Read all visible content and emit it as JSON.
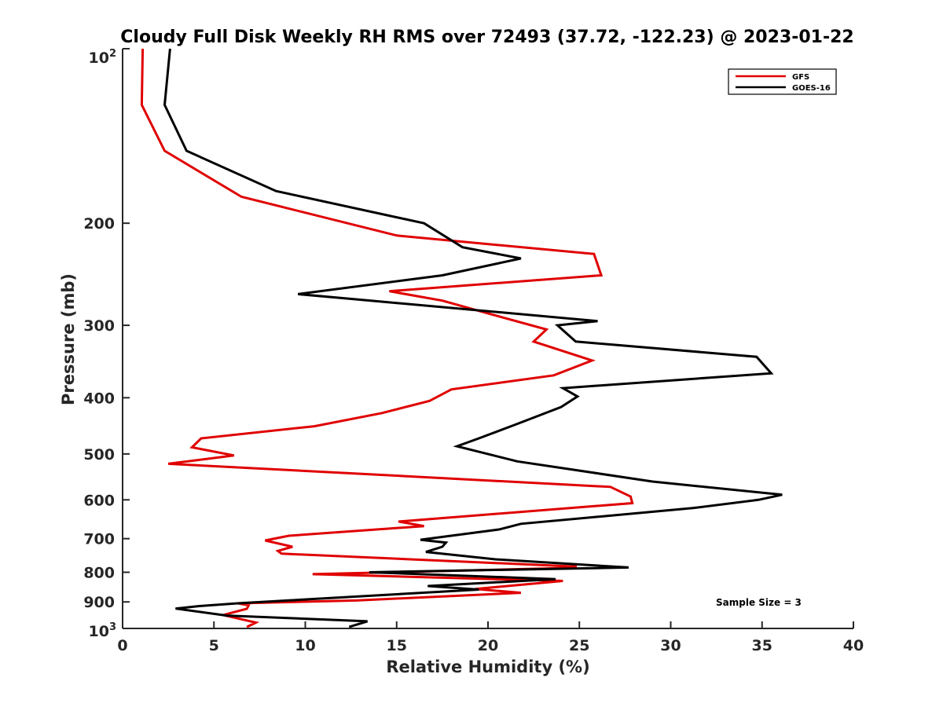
{
  "chart_data": {
    "type": "line",
    "title": "Cloudy Full Disk Weekly RH RMS over 72493 (37.72, -122.23) @ 2023-01-22",
    "xlabel": "Relative Humidity (%)",
    "ylabel": "Pressure (mb)",
    "xlim": [
      0,
      40
    ],
    "ylim": [
      100,
      1000
    ],
    "y_scale": "log",
    "y_direction": "reversed",
    "grid": false,
    "legend_placement": "top-right",
    "x_ticks": [
      "0",
      "5",
      "10",
      "15",
      "20",
      "25",
      "30",
      "35",
      "40"
    ],
    "y_ticks": [
      {
        "value": 200,
        "label": "200"
      },
      {
        "value": 300,
        "label": "300"
      },
      {
        "value": 400,
        "label": "400"
      },
      {
        "value": 500,
        "label": "500"
      },
      {
        "value": 600,
        "label": "600"
      },
      {
        "value": 700,
        "label": "700"
      },
      {
        "value": 800,
        "label": "800"
      },
      {
        "value": 900,
        "label": "900"
      }
    ],
    "y_extreme_labels": {
      "top_base": "10",
      "top_exp": "2",
      "bottom_base": "10",
      "bottom_exp": "3"
    },
    "annotation": "Sample Size = 3",
    "series": [
      {
        "name": "GFS",
        "color": "#e00000",
        "points": [
          [
            1.1,
            100
          ],
          [
            1.05,
            125
          ],
          [
            2.3,
            150
          ],
          [
            6.5,
            180
          ],
          [
            15,
            210
          ],
          [
            25.8,
            226
          ],
          [
            26.2,
            246
          ],
          [
            14.6,
            262
          ],
          [
            17.5,
            272
          ],
          [
            19.8,
            285
          ],
          [
            23.2,
            305
          ],
          [
            22.5,
            320
          ],
          [
            25.7,
            345
          ],
          [
            23.6,
            366
          ],
          [
            18,
            387
          ],
          [
            16.8,
            405
          ],
          [
            14.2,
            425
          ],
          [
            10.5,
            448
          ],
          [
            4.3,
            470
          ],
          [
            3.8,
            487
          ],
          [
            6.1,
            503
          ],
          [
            2.5,
            520
          ],
          [
            26.7,
            570
          ],
          [
            27.8,
            592
          ],
          [
            27.9,
            608
          ],
          [
            15.1,
            654
          ],
          [
            16.5,
            666
          ],
          [
            9.1,
            692
          ],
          [
            7.8,
            705
          ],
          [
            9.3,
            723
          ],
          [
            8.5,
            735
          ],
          [
            8.7,
            743
          ],
          [
            24.8,
            782
          ],
          [
            24.8,
            786
          ],
          [
            10.4,
            806
          ],
          [
            24.1,
            828
          ],
          [
            19.3,
            855
          ],
          [
            21.8,
            868
          ],
          [
            12.8,
            895
          ],
          [
            6.3,
            905
          ],
          [
            6.9,
            912
          ],
          [
            6.8,
            925
          ],
          [
            5.5,
            948
          ],
          [
            7.3,
            977
          ],
          [
            6.8,
            994
          ]
        ]
      },
      {
        "name": "GOES-16",
        "color": "#000000",
        "points": [
          [
            2.6,
            100
          ],
          [
            2.3,
            125
          ],
          [
            3.5,
            150
          ],
          [
            8.4,
            176
          ],
          [
            16.5,
            200
          ],
          [
            18.6,
            220
          ],
          [
            21.8,
            230
          ],
          [
            17.5,
            246
          ],
          [
            9.6,
            265
          ],
          [
            26,
            295
          ],
          [
            23.8,
            300
          ],
          [
            24.8,
            320
          ],
          [
            34.7,
            340
          ],
          [
            35.5,
            363
          ],
          [
            24.1,
            385
          ],
          [
            24.9,
            398
          ],
          [
            24,
            415
          ],
          [
            21.5,
            445
          ],
          [
            19.5,
            470
          ],
          [
            18.3,
            485
          ],
          [
            21.6,
            515
          ],
          [
            29,
            558
          ],
          [
            36.1,
            588
          ],
          [
            34.8,
            600
          ],
          [
            31.2,
            620
          ],
          [
            21.8,
            660
          ],
          [
            20.6,
            675
          ],
          [
            16.3,
            703
          ],
          [
            17.7,
            711
          ],
          [
            17.5,
            723
          ],
          [
            16.6,
            738
          ],
          [
            20.4,
            760
          ],
          [
            27.7,
            785
          ],
          [
            13.5,
            800
          ],
          [
            23.7,
            822
          ],
          [
            16.7,
            845
          ],
          [
            19.5,
            857
          ],
          [
            6.3,
            905
          ],
          [
            4.2,
            915
          ],
          [
            2.9,
            924
          ],
          [
            5.7,
            950
          ],
          [
            13.4,
            972
          ],
          [
            12.4,
            994
          ]
        ]
      }
    ]
  }
}
